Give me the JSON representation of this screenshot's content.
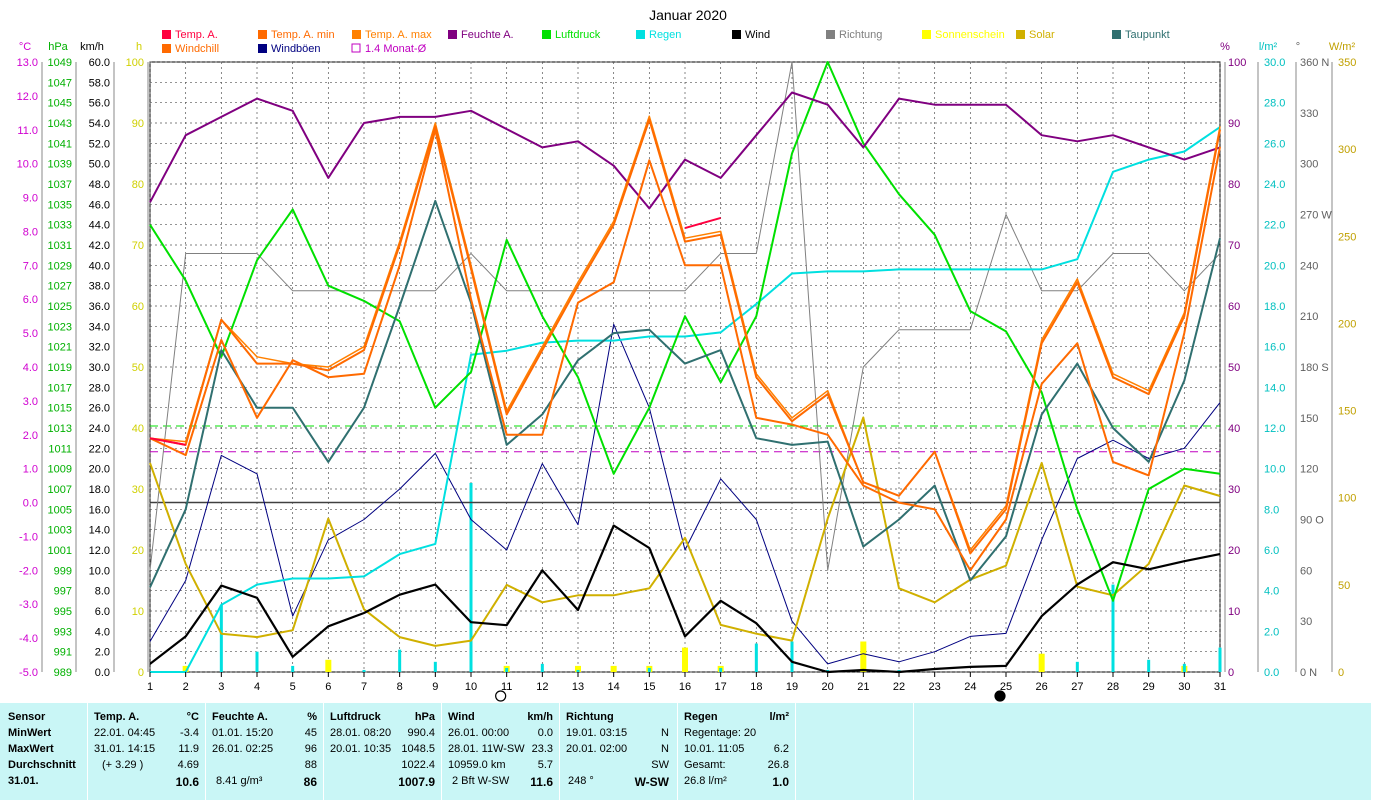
{
  "title": "Januar 2020",
  "legend": [
    {
      "label": "Temp. A.",
      "color": "#ff0040"
    },
    {
      "label": "Windchill",
      "color": "#ff6a00"
    },
    {
      "label": "Temp. A. min",
      "color": "#ff6a00"
    },
    {
      "label": "Windböen",
      "color": "#000080"
    },
    {
      "label": "Temp. A. max",
      "color": "#ff8000"
    },
    {
      "label": "1.4 Monat-Ø",
      "color": "#c000c0"
    },
    {
      "label": "Feuchte A.",
      "color": "#800080"
    },
    {
      "label": "Luftdruck",
      "color": "#00e000"
    },
    {
      "label": "Regen",
      "color": "#00e0e0"
    },
    {
      "label": "Wind",
      "color": "#000000"
    },
    {
      "label": "Richtung",
      "color": "#808080"
    },
    {
      "label": "Sonnenschein",
      "color": "#ffff00"
    },
    {
      "label": "Solar",
      "color": "#d0b000"
    },
    {
      "label": "Taupunkt",
      "color": "#307070"
    }
  ],
  "axes": {
    "temp": {
      "unit": "°C",
      "ticks": [
        "13.0",
        "12.0",
        "11.0",
        "10.0",
        "9.0",
        "8.0",
        "7.0",
        "6.0",
        "5.0",
        "4.0",
        "3.0",
        "2.0",
        "1.0",
        "0.0",
        "-1.0",
        "-2.0",
        "-3.0",
        "-4.0",
        "-5.0"
      ]
    },
    "pressure": {
      "unit": "hPa",
      "ticks": [
        "1049",
        "1047",
        "1045",
        "1043",
        "1041",
        "1039",
        "1037",
        "1035",
        "1033",
        "1031",
        "1029",
        "1027",
        "1025",
        "1023",
        "1021",
        "1019",
        "1017",
        "1015",
        "1013",
        "1011",
        "1009",
        "1007",
        "1005",
        "1003",
        "1001",
        "999",
        "997",
        "995",
        "993",
        "991",
        "989"
      ]
    },
    "wind": {
      "unit": "km/h",
      "ticks": [
        "60.0",
        "58.0",
        "56.0",
        "54.0",
        "52.0",
        "50.0",
        "48.0",
        "46.0",
        "44.0",
        "42.0",
        "40.0",
        "38.0",
        "36.0",
        "34.0",
        "32.0",
        "30.0",
        "28.0",
        "26.0",
        "24.0",
        "22.0",
        "20.0",
        "18.0",
        "16.0",
        "14.0",
        "12.0",
        "10.0",
        "8.0",
        "6.0",
        "4.0",
        "2.0",
        "0.0"
      ]
    },
    "sun": {
      "unit": "h",
      "ticks": [
        "100",
        "90",
        "80",
        "70",
        "60",
        "50",
        "40",
        "30",
        "20",
        "10",
        "0"
      ]
    },
    "humidity": {
      "unit": "%",
      "ticks": [
        "100",
        "90",
        "80",
        "70",
        "60",
        "50",
        "40",
        "30",
        "20",
        "10",
        "0"
      ]
    },
    "rain": {
      "unit": "l/m²",
      "ticks": [
        "30.0",
        "28.0",
        "26.0",
        "24.0",
        "22.0",
        "20.0",
        "18.0",
        "16.0",
        "14.0",
        "12.0",
        "10.0",
        "8.0",
        "6.0",
        "4.0",
        "2.0",
        "0.0"
      ]
    },
    "direction": {
      "unit": "°",
      "ticks": [
        "360 N",
        "330",
        "300",
        "270 W",
        "240",
        "210",
        "180 S",
        "150",
        "120",
        "90  O",
        "60",
        "30",
        "0   N"
      ]
    },
    "solar": {
      "unit": "W/m²",
      "ticks": [
        "350",
        "300",
        "250",
        "200",
        "150",
        "100",
        "50",
        "0"
      ]
    },
    "x_days": [
      "1",
      "2",
      "3",
      "4",
      "5",
      "6",
      "7",
      "8",
      "9",
      "10",
      "11",
      "12",
      "13",
      "14",
      "15",
      "16",
      "17",
      "18",
      "19",
      "20",
      "21",
      "22",
      "23",
      "24",
      "25",
      "26",
      "27",
      "28",
      "29",
      "30",
      "31"
    ]
  },
  "chart_data": {
    "type": "line",
    "title": "Januar 2020",
    "x": [
      1,
      2,
      3,
      4,
      5,
      6,
      7,
      8,
      9,
      10,
      11,
      12,
      13,
      14,
      15,
      16,
      17,
      18,
      19,
      20,
      21,
      22,
      23,
      24,
      25,
      26,
      27,
      28,
      29,
      30,
      31
    ],
    "xlim": [
      1,
      31
    ],
    "series": [
      {
        "name": "Temp. A.",
        "unit": "°C",
        "color": "#ff0040",
        "values": [
          1.9,
          1.7,
          null,
          null,
          null,
          null,
          null,
          null,
          null,
          null,
          null,
          null,
          null,
          null,
          null,
          8.1,
          8.4,
          null,
          null,
          null,
          null,
          null,
          null,
          null,
          null,
          null,
          null,
          null,
          null,
          null,
          null
        ]
      },
      {
        "name": "Windchill",
        "unit": "°C",
        "color": "#ff6a00",
        "values": [
          1.9,
          1.7,
          5.4,
          4.1,
          4.1,
          3.9,
          4.5,
          7.6,
          11.1,
          6.9,
          2.6,
          4.5,
          6.4,
          8.2,
          11.3,
          7.7,
          7.9,
          3.7,
          2.4,
          3.2,
          0.6,
          0.2,
          1.5,
          -1.5,
          -0.2,
          4.7,
          6.5,
          3.7,
          3.2,
          5.5,
          11.0
        ]
      },
      {
        "name": "Temp. A. min",
        "unit": "°C",
        "color": "#ff6a00",
        "values": [
          1.9,
          1.4,
          4.8,
          2.5,
          4.2,
          3.7,
          3.8,
          7.0,
          11.0,
          6.0,
          2.0,
          2.0,
          5.9,
          6.5,
          10.1,
          7.0,
          7.0,
          2.5,
          2.3,
          2.0,
          0.5,
          0.0,
          -0.2,
          -2.0,
          -0.5,
          3.5,
          4.7,
          1.2,
          0.8,
          5.0,
          10.5
        ]
      },
      {
        "name": "Temp. A. max",
        "unit": "°C",
        "color": "#ff8000",
        "values": [
          1.9,
          1.8,
          5.4,
          4.3,
          4.1,
          4.0,
          4.6,
          7.7,
          11.2,
          7.0,
          2.7,
          4.6,
          6.5,
          8.3,
          11.4,
          7.8,
          8.0,
          3.8,
          2.5,
          3.3,
          0.6,
          0.2,
          1.5,
          -1.4,
          -0.1,
          4.8,
          6.6,
          3.8,
          3.3,
          5.6,
          11.1
        ]
      },
      {
        "name": "Feuchte A.",
        "unit": "%",
        "color": "#800080",
        "values": [
          77,
          88,
          91,
          94,
          92,
          81,
          90,
          91,
          91,
          92,
          89,
          86,
          87,
          83,
          76,
          84,
          81,
          88,
          95,
          93,
          86,
          94,
          93,
          93,
          93,
          88,
          87,
          88,
          86,
          84,
          86
        ]
      },
      {
        "name": "Luftdruck",
        "unit": "hPa",
        "color": "#00e000",
        "values": [
          1033.0,
          1027.5,
          1020.0,
          1029.5,
          1034.5,
          1027.0,
          1025.5,
          1023.5,
          1015.0,
          1018.5,
          1031.5,
          1024.0,
          1018.0,
          1008.5,
          1015.0,
          1024.0,
          1017.5,
          1024.0,
          1040.0,
          1049.0,
          1041.0,
          1036.0,
          1032.0,
          1024.5,
          1022.5,
          1016.5,
          1005.0,
          996.0,
          1007.0,
          1009.0,
          1008.5
        ]
      },
      {
        "name": "Regen",
        "unit": "l/m²",
        "color": "#00e0e0",
        "values": [
          0.0,
          0.0,
          3.3,
          4.3,
          4.6,
          4.6,
          4.7,
          5.8,
          6.3,
          15.6,
          15.8,
          16.2,
          16.3,
          16.3,
          16.5,
          16.5,
          16.7,
          18.1,
          19.6,
          19.7,
          19.7,
          19.8,
          19.8,
          19.8,
          19.8,
          19.8,
          20.3,
          24.6,
          25.2,
          25.6,
          26.8
        ]
      },
      {
        "name": "Wind",
        "unit": "km/h",
        "color": "#000000",
        "values": [
          0.8,
          3.5,
          8.5,
          7.3,
          1.5,
          4.5,
          5.8,
          7.6,
          8.6,
          4.9,
          4.6,
          10.0,
          6.1,
          14.4,
          12.2,
          3.5,
          7.0,
          4.8,
          1.0,
          0.0,
          0.2,
          0.0,
          0.3,
          0.5,
          0.6,
          5.5,
          8.6,
          10.8,
          10.1,
          10.9,
          11.6
        ]
      },
      {
        "name": "Windböen",
        "unit": "km/h",
        "color": "#000080",
        "values": [
          3.0,
          9.0,
          21.3,
          19.5,
          5.5,
          13.0,
          15.0,
          18.0,
          21.5,
          15.0,
          12.0,
          20.5,
          14.5,
          34.2,
          26.0,
          12.0,
          19.0,
          15.0,
          5.0,
          0.8,
          1.8,
          1.0,
          2.0,
          3.5,
          3.8,
          13.0,
          21.0,
          22.8,
          21.0,
          22.0,
          26.5
        ]
      },
      {
        "name": "Richtung",
        "unit": "°",
        "color": "#808080",
        "values": [
          60,
          247,
          247,
          247,
          225,
          225,
          225,
          225,
          225,
          247,
          225,
          225,
          225,
          225,
          225,
          225,
          247,
          247,
          360,
          60,
          180,
          202,
          202,
          202,
          270,
          225,
          225,
          247,
          247,
          225,
          247
        ]
      },
      {
        "name": "Solar",
        "unit": "W/m²",
        "color": "#d0b000",
        "values": [
          120,
          62,
          22,
          20,
          24,
          88,
          36,
          20,
          15,
          18,
          50,
          40,
          44,
          44,
          48,
          77,
          27,
          22,
          18,
          88,
          146,
          48,
          40,
          53,
          61,
          120,
          49,
          44,
          62,
          107,
          101
        ]
      },
      {
        "name": "Taupunkt",
        "unit": "°C",
        "color": "#307070",
        "values": [
          -2.5,
          -0.2,
          4.5,
          2.8,
          2.8,
          1.2,
          2.8,
          5.8,
          8.9,
          5.9,
          1.7,
          2.6,
          4.2,
          5.0,
          5.1,
          4.1,
          4.5,
          1.9,
          1.7,
          1.8,
          -1.3,
          -0.5,
          0.5,
          -2.3,
          -1.0,
          2.6,
          4.1,
          2.2,
          1.2,
          3.6,
          7.8
        ]
      },
      {
        "name": "Sonnenschein",
        "unit": "h",
        "color": "#ffff00",
        "type": "bar",
        "values": [
          0,
          1,
          0,
          0,
          0,
          2,
          0,
          0,
          0,
          0,
          1,
          0,
          1,
          1,
          1,
          4,
          1,
          0,
          0,
          0,
          5,
          0,
          0,
          0,
          0,
          3,
          0,
          0,
          0,
          1,
          0
        ]
      }
    ],
    "reference_lines": [
      {
        "name": "1.4 Monat-Ø",
        "unit": "°C",
        "value": 1.5,
        "color": "#c000c0",
        "style": "dashed"
      },
      {
        "name": "Luftdruck Mittel",
        "unit": "hPa",
        "value": 1013.2,
        "color": "#00e000",
        "style": "dashed"
      },
      {
        "name": "0 °C",
        "unit": "°C",
        "value": 0.0,
        "color": "#404040",
        "style": "solid"
      }
    ],
    "moon_phases": [
      {
        "day": 11,
        "phase": "full"
      },
      {
        "day": 25,
        "phase": "new"
      }
    ],
    "grid": true,
    "legend_position": "top"
  },
  "stats": {
    "sensor": {
      "header": "Sensor",
      "rows": [
        "MinWert",
        "MaxWert",
        "Durchschnitt",
        "31.01."
      ]
    },
    "temp": {
      "header": "Temp. A.",
      "unit": "°C",
      "min_date": "22.01.  04:45",
      "min_val": "-3.4",
      "max_date": "31.01.  14:15",
      "max_val": "11.9",
      "avg_note": "(+ 3.29 )",
      "avg_val": "4.69",
      "today": "10.6"
    },
    "humidity": {
      "header": "Feuchte A.",
      "unit": "%",
      "min_date": "01.01.  15:20",
      "min_val": "45",
      "max_date": "26.01.  02:25",
      "max_val": "96",
      "avg_val": "88",
      "today_note": "8.41 g/m³",
      "today": "86"
    },
    "pressure": {
      "header": "Luftdruck",
      "unit": "hPa",
      "min_date": "28.01.  08:20",
      "min_val": "990.4",
      "max_date": "20.01.  10:35",
      "max_val": "1048.5",
      "avg_val": "1022.4",
      "today": "1007.9"
    },
    "wind": {
      "header": "Wind",
      "unit": "km/h",
      "min_date": "26.01.  00:00",
      "min_val": "0.0",
      "max_date": "28.01.  11W-SW",
      "max_val": "23.3",
      "avg_note": "10959.0 km",
      "avg_val": "5.7",
      "today_note": "2 Bft W-SW",
      "today": "11.6"
    },
    "direction": {
      "header": "Richtung",
      "min_date": "19.01.  03:15",
      "min_val": "N",
      "max_date": "20.01.  02:00",
      "max_val": "N",
      "avg_val": "SW",
      "today_note": "248 °",
      "today": "W-SW"
    },
    "rain": {
      "header": "Regen",
      "unit": "l/m²",
      "line1": "Regentage: 20",
      "max_date": "10.01.  11:05",
      "max_val": "6.2",
      "total_label": "Gesamt:",
      "total_val": "26.8",
      "today_note": "26.8 l/m²",
      "today": "1.0"
    }
  }
}
